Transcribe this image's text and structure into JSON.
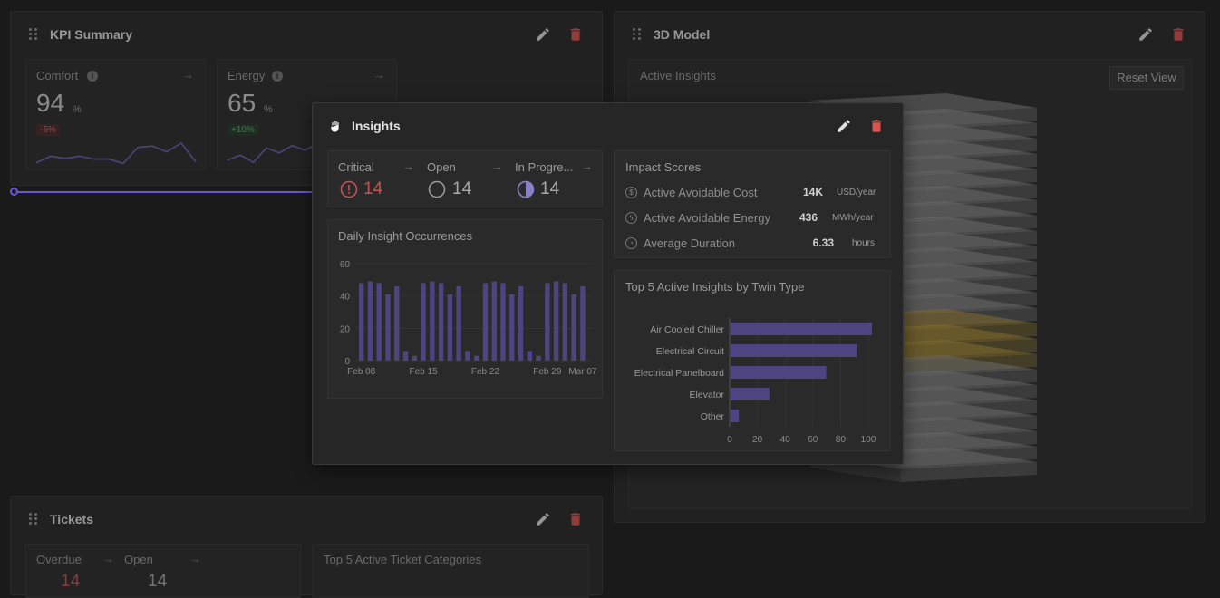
{
  "kpi": {
    "title": "KPI Summary",
    "cards": [
      {
        "label": "Comfort",
        "value": "94",
        "unit": "%",
        "delta": "-5%",
        "trend": "neg",
        "spark": [
          3,
          12,
          9,
          12,
          8,
          8,
          2,
          24,
          26,
          18,
          30,
          4
        ]
      },
      {
        "label": "Energy",
        "value": "65",
        "unit": "%",
        "delta": "+10%",
        "trend": "pos",
        "spark": [
          4,
          8,
          2,
          14,
          10,
          16,
          12,
          18
        ]
      }
    ]
  },
  "model": {
    "title": "3D Model",
    "insights_label": "Active Insights",
    "reset_label": "Reset View"
  },
  "insights": {
    "title": "Insights",
    "stats": [
      {
        "label": "Critical",
        "value": "14",
        "icon": "alert-circle-icon"
      },
      {
        "label": "Open",
        "value": "14",
        "icon": "circle-open-icon"
      },
      {
        "label": "In Progre...",
        "value": "14",
        "icon": "half-circle-icon"
      }
    ],
    "impact": {
      "title": "Impact Scores",
      "rows": [
        {
          "name": "Active Avoidable Cost",
          "value": "14K",
          "unit": "USD/year",
          "icon": "dollar-icon"
        },
        {
          "name": "Active Avoidable Energy",
          "value": "436",
          "unit": "MWh/year",
          "icon": "bolt-icon"
        },
        {
          "name": "Average Duration",
          "value": "6.33",
          "unit": "hours",
          "icon": "clock-icon"
        }
      ]
    },
    "daily_title": "Daily Insight Occurrences",
    "top5_title": "Top 5 Active Insights by Twin Type"
  },
  "tickets": {
    "title": "Tickets",
    "stats": [
      {
        "label": "Overdue",
        "value": "14"
      },
      {
        "label": "Open",
        "value": "14"
      }
    ],
    "top5_title": "Top 5 Active Ticket Categories"
  },
  "colors": {
    "accent": "#6a55d6",
    "bar": "#4e4480",
    "danger": "#d9534f",
    "highlight": "#b8962e"
  },
  "chart_data": [
    {
      "type": "bar",
      "title": "Daily Insight Occurrences",
      "ylim": [
        0,
        60
      ],
      "yticks": [
        "0",
        "20",
        "40",
        "60"
      ],
      "xticks": [
        "Feb 08",
        "Feb 15",
        "Feb 22",
        "Feb 29",
        "Mar 07"
      ],
      "values": [
        48,
        49,
        48,
        41,
        46,
        6,
        3,
        48,
        49,
        48,
        41,
        46,
        6,
        3,
        48,
        49,
        48,
        41,
        46,
        6,
        3,
        48,
        49,
        48,
        41,
        46
      ]
    },
    {
      "type": "bar",
      "orientation": "horizontal",
      "title": "Top 5 Active Insights by Twin Type",
      "categories": [
        "Air Cooled Chiller",
        "Electrical Circuit",
        "Electrical Panelboard",
        "Elevator",
        "Other"
      ],
      "values": [
        102,
        91,
        69,
        28,
        6
      ],
      "xlim": [
        0,
        100
      ],
      "xticks": [
        "0",
        "20",
        "40",
        "60",
        "80",
        "100"
      ]
    }
  ]
}
